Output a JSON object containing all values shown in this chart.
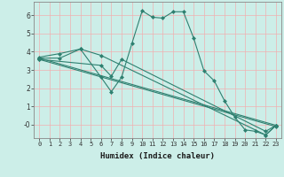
{
  "xlabel": "Humidex (Indice chaleur)",
  "ylabel": "",
  "color": "#2e8070",
  "background_color": "#cceee8",
  "grid_color": "#e8f8f5",
  "xlim": [
    -0.5,
    23.5
  ],
  "ylim": [
    -0.75,
    6.75
  ],
  "lines": [
    {
      "x": [
        0,
        2,
        4,
        6,
        7,
        8,
        9,
        10,
        11,
        12,
        13,
        14,
        15,
        16,
        17,
        18,
        19,
        20,
        21,
        22,
        23
      ],
      "y": [
        3.7,
        3.9,
        4.15,
        2.6,
        1.8,
        2.6,
        4.45,
        6.25,
        5.9,
        5.85,
        6.2,
        6.2,
        4.75,
        2.95,
        2.4,
        1.3,
        0.4,
        -0.3,
        -0.38,
        -0.58,
        -0.05
      ]
    },
    {
      "x": [
        0,
        2,
        4,
        6,
        22,
        23
      ],
      "y": [
        3.65,
        3.65,
        4.15,
        3.8,
        -0.58,
        -0.05
      ]
    },
    {
      "x": [
        0,
        23
      ],
      "y": [
        3.65,
        -0.05
      ]
    },
    {
      "x": [
        0,
        23
      ],
      "y": [
        3.58,
        -0.12
      ]
    },
    {
      "x": [
        0,
        6,
        7,
        8,
        22,
        23
      ],
      "y": [
        3.58,
        3.25,
        2.65,
        3.58,
        -0.38,
        -0.05
      ]
    }
  ],
  "yticks": [
    0,
    1,
    2,
    3,
    4,
    5,
    6
  ],
  "ytick_labels": [
    "-0",
    "1",
    "2",
    "3",
    "4",
    "5",
    "6"
  ],
  "xtick_labels": [
    "0",
    "1",
    "2",
    "3",
    "4",
    "5",
    "6",
    "7",
    "8",
    "9",
    "10",
    "11",
    "12",
    "13",
    "14",
    "15",
    "16",
    "17",
    "18",
    "19",
    "20",
    "21",
    "22",
    "23"
  ],
  "marker": "D",
  "markersize": 2.0,
  "linewidth": 0.8,
  "tick_fontsize": 5.0,
  "xlabel_fontsize": 6.5
}
